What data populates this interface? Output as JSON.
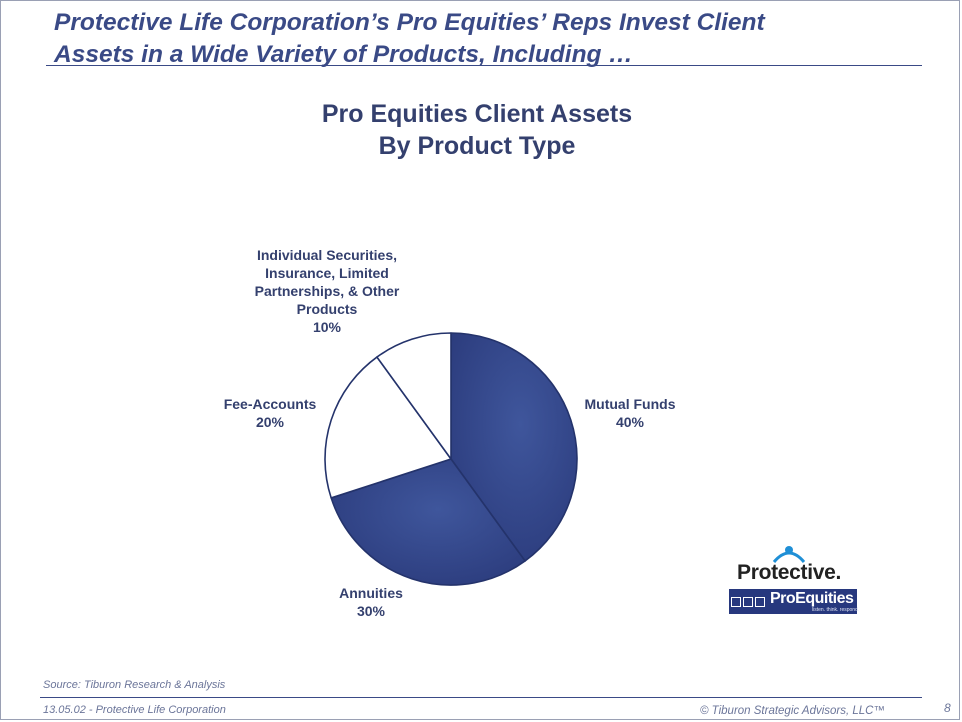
{
  "slide": {
    "title_line1": "Protective Life Corporation’s Pro Equities’ Reps Invest Client",
    "title_line2": "Assets in a Wide Variety of Products, Including …",
    "source": "Source:  Tiburon Research & Analysis",
    "footer_left": "13.05.02 - Protective Life Corporation",
    "footer_right": "© Tiburon Strategic Advisors, LLC™",
    "page_number": "8"
  },
  "logos": {
    "protective": "Protective.",
    "proequities": "ProEquities",
    "proequities_tagline": "listen. think. respond."
  },
  "chart_data": {
    "type": "pie",
    "title_line1": "Pro Equities Client Assets",
    "title_line2": "By Product Type",
    "slices": [
      {
        "label": "Mutual Funds",
        "value": 40,
        "value_label": "40%",
        "color": "#2f4286"
      },
      {
        "label": "Annuities",
        "value": 30,
        "value_label": "30%",
        "color": "#2f4286"
      },
      {
        "label": "Fee-Accounts",
        "value": 20,
        "value_label": "20%",
        "color": "#ffffff"
      },
      {
        "label": "Individual Securities, Insurance, Limited Partnerships, & Other Products",
        "value": 10,
        "value_label": "10%",
        "color": "#ffffff"
      }
    ],
    "outline_color": "#24336b"
  },
  "colors": {
    "title": "#3a4a86",
    "label": "#34406e",
    "footer": "#6b7599"
  }
}
